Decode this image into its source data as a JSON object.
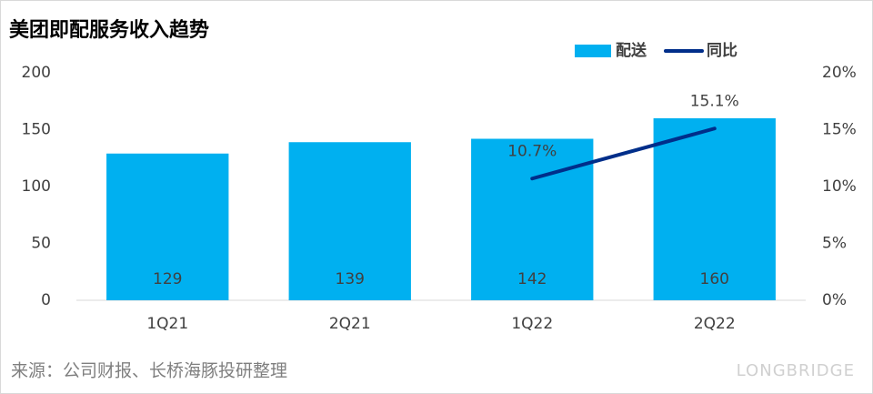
{
  "chart_data": {
    "type": "bar",
    "title": "美团即配服务收入趋势",
    "source": "来源：公司财报、长桥海豚投研整理",
    "brand": "LONGBRIDGE",
    "categories": [
      "1Q21",
      "2Q21",
      "1Q22",
      "2Q22"
    ],
    "series": [
      {
        "name": "配送",
        "type": "bar",
        "color": "#00b0f0",
        "values": [
          129,
          139,
          142,
          160
        ]
      },
      {
        "name": "同比",
        "type": "line",
        "axis": "y2",
        "color": "#002e8a",
        "values": [
          null,
          null,
          10.7,
          15.1
        ],
        "value_labels": [
          null,
          null,
          "10.7%",
          "15.1%"
        ]
      }
    ],
    "ylim": [
      0,
      200
    ],
    "yticks": [
      0,
      50,
      100,
      150,
      200
    ],
    "y2lim": [
      0,
      20
    ],
    "y2ticks": [
      {
        "value": 0,
        "label": "0%"
      },
      {
        "value": 5,
        "label": "5%"
      },
      {
        "value": 10,
        "label": "10%"
      },
      {
        "value": 15,
        "label": "15%"
      },
      {
        "value": 20,
        "label": "20%"
      }
    ],
    "grid": false,
    "legend": "top-right"
  }
}
